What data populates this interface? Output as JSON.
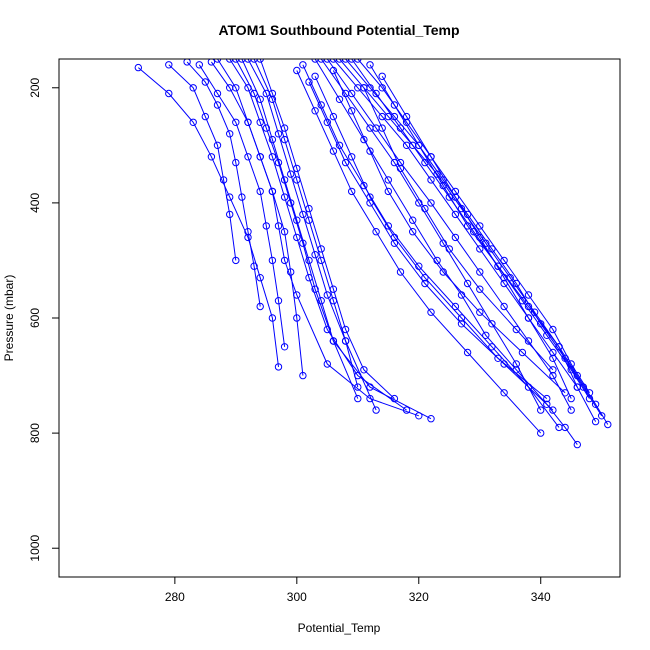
{
  "chart_data": {
    "type": "line",
    "title": "ATOM1 Southbound Potential_Temp",
    "xlabel": "Potential_Temp",
    "ylabel": "Pressure (mbar)",
    "xlim": [
      261,
      353
    ],
    "ylim": [
      1050,
      150
    ],
    "y_reversed": true,
    "x_ticks": [
      280,
      300,
      320,
      340
    ],
    "y_ticks": [
      200,
      400,
      600,
      800,
      1000
    ],
    "grid": false,
    "legend": "none",
    "series_color": "#0000ff",
    "marker": "open-circle",
    "series": [
      {
        "x": [
          274,
          279,
          283,
          286,
          289,
          292,
          294,
          296,
          297
        ],
        "y": [
          165,
          210,
          260,
          320,
          390,
          460,
          530,
          600,
          685
        ]
      },
      {
        "x": [
          279,
          283,
          285,
          287,
          288,
          289,
          290
        ],
        "y": [
          160,
          200,
          250,
          300,
          360,
          420,
          500
        ]
      },
      {
        "x": [
          282,
          285,
          287,
          289,
          290,
          291,
          292,
          293,
          294
        ],
        "y": [
          155,
          190,
          230,
          280,
          330,
          390,
          450,
          510,
          580
        ]
      },
      {
        "x": [
          284,
          287,
          290,
          292,
          294,
          295,
          296,
          297,
          298
        ],
        "y": [
          160,
          210,
          260,
          320,
          380,
          440,
          500,
          570,
          650
        ]
      },
      {
        "x": [
          286,
          289,
          292,
          294,
          296,
          298,
          299,
          300,
          301
        ],
        "y": [
          155,
          200,
          260,
          320,
          380,
          450,
          520,
          600,
          700
        ]
      },
      {
        "x": [
          287,
          290,
          292,
          294,
          296,
          297,
          298,
          300,
          305,
          312,
          320
        ],
        "y": [
          150,
          200,
          260,
          320,
          380,
          440,
          500,
          560,
          680,
          740,
          770
        ]
      },
      {
        "x": [
          289,
          292,
          294,
          296,
          298,
          300,
          302,
          305,
          310,
          318
        ],
        "y": [
          150,
          200,
          260,
          320,
          390,
          460,
          530,
          620,
          700,
          760
        ]
      },
      {
        "x": [
          290,
          293,
          295,
          297,
          299,
          301,
          303,
          306,
          310
        ],
        "y": [
          150,
          210,
          270,
          330,
          400,
          470,
          550,
          640,
          740
        ]
      },
      {
        "x": [
          291,
          294,
          296,
          298,
          300,
          302,
          304,
          306,
          312,
          322
        ],
        "y": [
          150,
          220,
          290,
          360,
          430,
          500,
          570,
          640,
          720,
          775
        ]
      },
      {
        "x": [
          292,
          295,
          297,
          299,
          301,
          303,
          305,
          308,
          313
        ],
        "y": [
          150,
          210,
          280,
          350,
          420,
          490,
          560,
          640,
          760
        ]
      },
      {
        "x": [
          293,
          296,
          298,
          300,
          302,
          304,
          306,
          308,
          310
        ],
        "y": [
          150,
          220,
          290,
          360,
          430,
          500,
          570,
          640,
          720
        ]
      },
      {
        "x": [
          294,
          296,
          298,
          300,
          302,
          304,
          306,
          308,
          311,
          316
        ],
        "y": [
          150,
          210,
          270,
          340,
          410,
          480,
          550,
          620,
          690,
          740
        ]
      },
      {
        "x": [
          303,
          307,
          311,
          315,
          319,
          323,
          327,
          331,
          336,
          341,
          344,
          346
        ],
        "y": [
          150,
          220,
          290,
          360,
          430,
          500,
          560,
          630,
          690,
          750,
          790,
          820
        ]
      },
      {
        "x": [
          304,
          308,
          312,
          316,
          320,
          324,
          328,
          332,
          336,
          340
        ],
        "y": [
          150,
          210,
          270,
          330,
          400,
          470,
          540,
          610,
          680,
          760
        ]
      },
      {
        "x": [
          305,
          309,
          313,
          317,
          322,
          326,
          330,
          334,
          338,
          342,
          345
        ],
        "y": [
          150,
          210,
          270,
          330,
          400,
          460,
          520,
          580,
          640,
          700,
          760
        ]
      },
      {
        "x": [
          306,
          310,
          314,
          318,
          322,
          326,
          330,
          334,
          338,
          342,
          346,
          349
        ],
        "y": [
          150,
          200,
          250,
          300,
          360,
          420,
          480,
          540,
          600,
          660,
          720,
          780
        ]
      },
      {
        "x": [
          307,
          311,
          315,
          319,
          323,
          327,
          331,
          335,
          339,
          343,
          346,
          349,
          351
        ],
        "y": [
          150,
          200,
          250,
          300,
          350,
          410,
          470,
          530,
          590,
          650,
          700,
          750,
          785
        ]
      },
      {
        "x": [
          308,
          312,
          316,
          320,
          324,
          328,
          332,
          336,
          340,
          344,
          347,
          350
        ],
        "y": [
          150,
          200,
          250,
          300,
          360,
          420,
          480,
          540,
          610,
          670,
          720,
          770
        ]
      },
      {
        "x": [
          309,
          313,
          317,
          321,
          325,
          329,
          333,
          337,
          341,
          345,
          348
        ],
        "y": [
          150,
          210,
          270,
          330,
          390,
          450,
          510,
          570,
          630,
          690,
          740
        ]
      },
      {
        "x": [
          310,
          314,
          318,
          322,
          326,
          330,
          334,
          338,
          342,
          345,
          348
        ],
        "y": [
          150,
          200,
          260,
          320,
          380,
          440,
          500,
          560,
          620,
          680,
          730
        ]
      },
      {
        "x": [
          301,
          304,
          307,
          311,
          315,
          320,
          326,
          332,
          338,
          343
        ],
        "y": [
          160,
          230,
          300,
          370,
          440,
          510,
          580,
          650,
          720,
          790
        ]
      },
      {
        "x": [
          300,
          303,
          306,
          309,
          313,
          317,
          322,
          328,
          334,
          340
        ],
        "y": [
          170,
          240,
          310,
          380,
          450,
          520,
          590,
          660,
          730,
          800
        ]
      },
      {
        "x": [
          303,
          306,
          309,
          312,
          316,
          321,
          327,
          333,
          341
        ],
        "y": [
          180,
          250,
          320,
          390,
          460,
          530,
          600,
          670,
          740
        ]
      },
      {
        "x": [
          302,
          305,
          308,
          312,
          316,
          321,
          327,
          334,
          342
        ],
        "y": [
          190,
          260,
          330,
          400,
          470,
          540,
          610,
          680,
          760
        ]
      },
      {
        "x": [
          306,
          309,
          312,
          315,
          319,
          324,
          330,
          337,
          344
        ],
        "y": [
          170,
          240,
          310,
          380,
          450,
          520,
          590,
          660,
          730
        ]
      },
      {
        "x": [
          311,
          314,
          317,
          321,
          325,
          330,
          336,
          342
        ],
        "y": [
          200,
          270,
          340,
          410,
          480,
          550,
          620,
          690
        ]
      },
      {
        "x": [
          312,
          316,
          320,
          324,
          328,
          333,
          338,
          343,
          346
        ],
        "y": [
          160,
          230,
          300,
          370,
          440,
          510,
          580,
          650,
          720
        ]
      },
      {
        "x": [
          314,
          318,
          322,
          326,
          330,
          334,
          338,
          342,
          345
        ],
        "y": [
          180,
          250,
          320,
          390,
          460,
          530,
          600,
          670,
          740
        ]
      }
    ]
  }
}
